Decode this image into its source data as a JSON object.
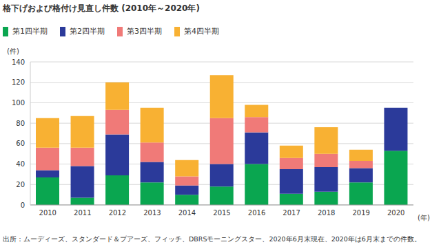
{
  "chart_data": {
    "type": "bar",
    "title": "格下げおよび格付け見直し件数 (2010年～2020年)",
    "categories": [
      "2010",
      "2011",
      "2012",
      "2013",
      "2014",
      "2015",
      "2016",
      "2017",
      "2018",
      "2019",
      "2020"
    ],
    "series": [
      {
        "name": "第1四半期",
        "color": "#0aa650",
        "values": [
          27,
          7,
          29,
          22,
          10,
          18,
          40,
          11,
          13,
          22,
          53
        ]
      },
      {
        "name": "第2四半期",
        "color": "#2b3a9a",
        "values": [
          7,
          31,
          40,
          20,
          9,
          22,
          31,
          24,
          24,
          14,
          42
        ]
      },
      {
        "name": "第3四半期",
        "color": "#f07a78",
        "values": [
          22,
          18,
          24,
          19,
          9,
          45,
          15,
          11,
          13,
          7,
          null
        ]
      },
      {
        "name": "第4四半期",
        "color": "#f8b133",
        "values": [
          29,
          31,
          27,
          34,
          16,
          42,
          12,
          12,
          26,
          11,
          null
        ]
      }
    ],
    "ylim": [
      0,
      140
    ],
    "yticks": [
      0,
      20,
      40,
      60,
      80,
      100,
      120,
      140
    ],
    "grid": true,
    "stacked": true,
    "legend": "top-left",
    "y_label": "(件)",
    "x_label": "(年)",
    "note": "出所：ムーディーズ、スタンダード＆プアーズ、フィッチ、DBRSモーニングスター、2020年6月末現在、2020年は6月末までの件数。"
  }
}
